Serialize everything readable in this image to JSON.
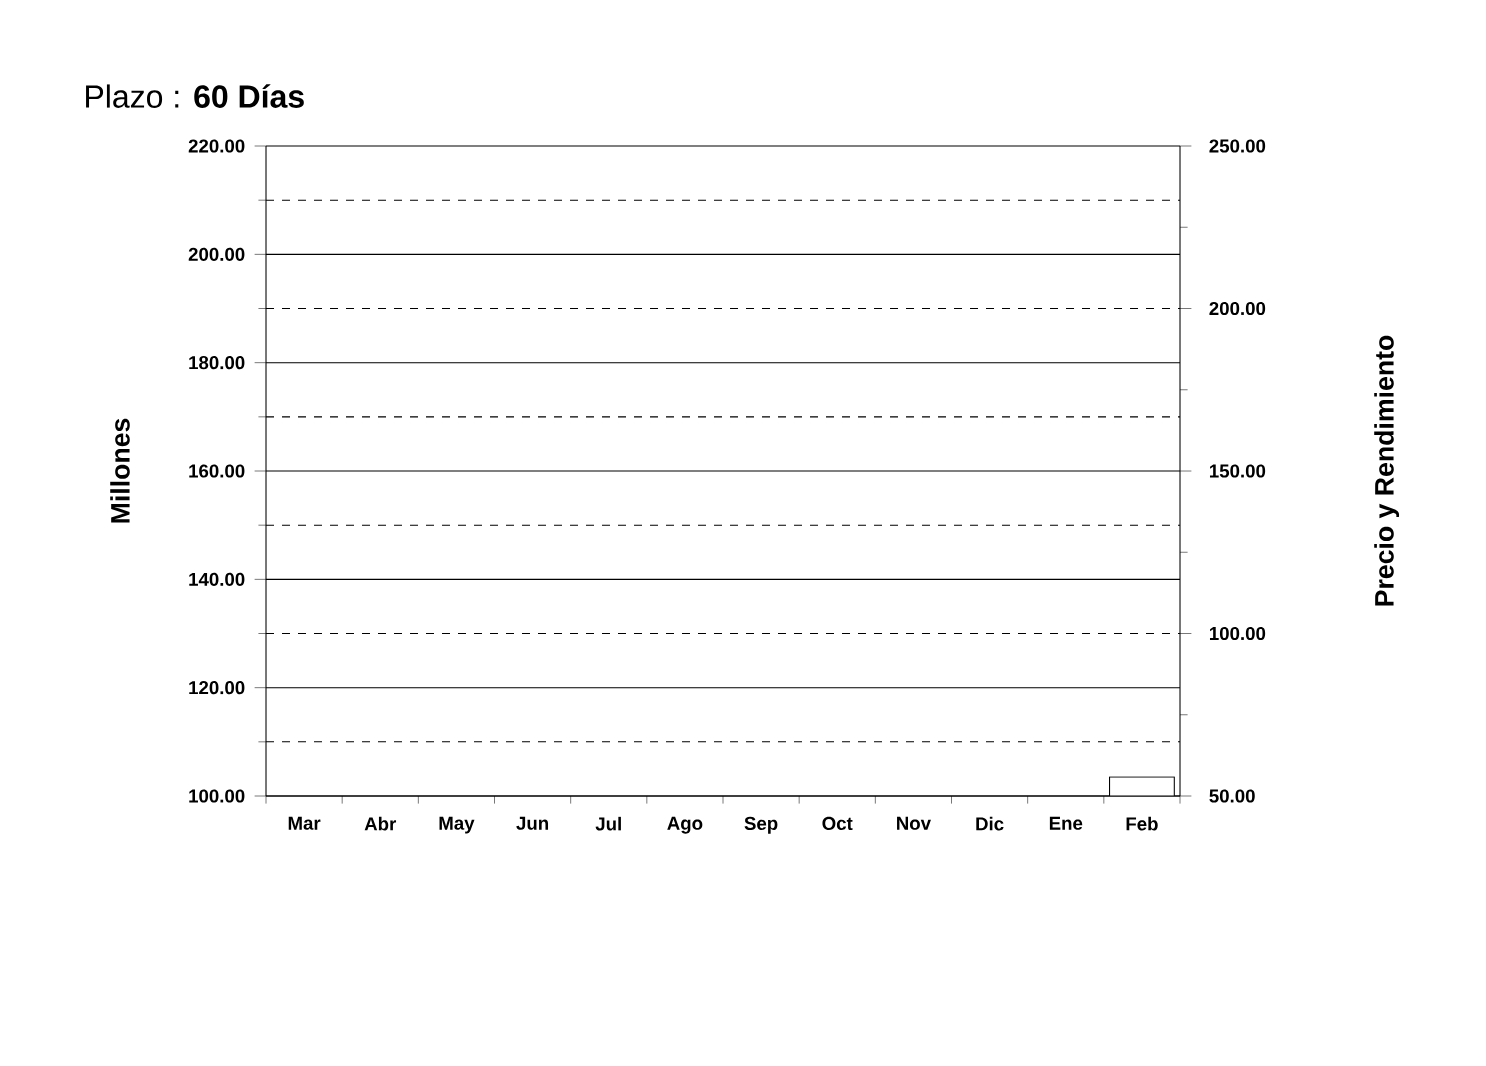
{
  "chart_data": {
    "type": "bar",
    "title": "Plazo :   **60 Días**",
    "categories": [
      "Mar",
      "Abr",
      "May",
      "Jun",
      "Jul",
      "Ago",
      "Sep",
      "Oct",
      "Nov",
      "Dic",
      "Ene",
      "Feb"
    ],
    "series": [
      {
        "color": "#ffffff",
        "values": [
          null,
          null,
          null,
          null,
          null,
          null,
          null,
          null,
          null,
          null,
          null,
          103.5
        ]
      }
    ],
    "ylabel": "Millones",
    "y2label": "Precio y  Rendimiento",
    "ylim": [
      100,
      220
    ],
    "yticks": [
      {
        "value": 100,
        "label": "100.00"
      },
      {
        "value": 110,
        "label": null
      },
      {
        "value": 120,
        "label": "120.00"
      },
      {
        "value": 130,
        "label": null
      },
      {
        "value": 140,
        "label": "140.00"
      },
      {
        "value": 150,
        "label": null
      },
      {
        "value": 160,
        "label": "160.00"
      },
      {
        "value": 170,
        "label": null
      },
      {
        "value": 180,
        "label": "180.00"
      },
      {
        "value": 190,
        "label": null
      },
      {
        "value": 200,
        "label": "200.00"
      },
      {
        "value": 210,
        "label": null
      },
      {
        "value": 220,
        "label": "220.00"
      }
    ],
    "y2lim": [
      50,
      250
    ],
    "y2ticks": [
      {
        "value": 50,
        "label": "50.00"
      },
      {
        "value": 75,
        "label": null
      },
      {
        "value": 100,
        "label": "100.00"
      },
      {
        "value": 125,
        "label": null
      },
      {
        "value": 150,
        "label": "150.00"
      },
      {
        "value": 175,
        "label": null
      },
      {
        "value": 200,
        "label": "200.00"
      },
      {
        "value": 225,
        "label": null
      },
      {
        "value": 250,
        "label": "250.00"
      }
    ],
    "grid": "y"
  }
}
